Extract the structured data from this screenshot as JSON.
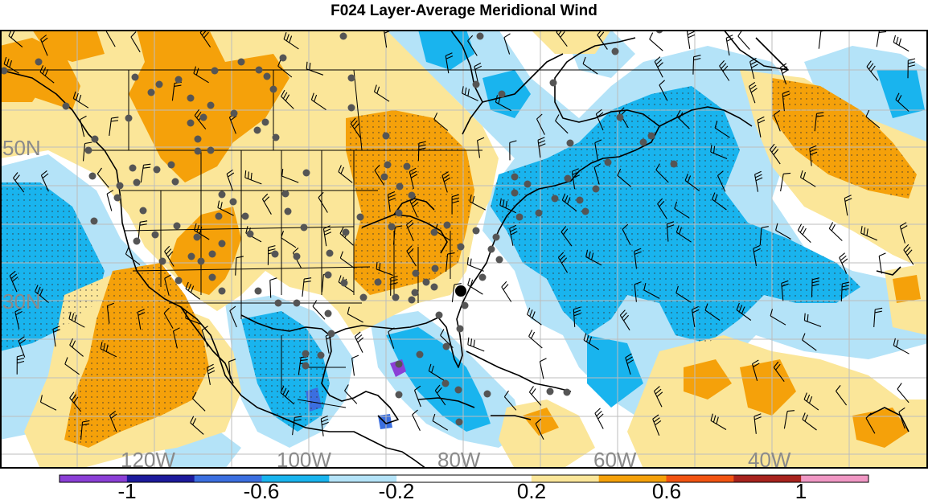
{
  "title": "F024 Layer-Average Meridional Wind",
  "colors": {
    "blue_dark": "#2a1fa0",
    "blue_mid": "#3b6fe0",
    "cyan": "#19b4ee",
    "lightblue": "#b4e3f8",
    "white": "#ffffff",
    "yellow": "#fbe699",
    "orange": "#f5a10a",
    "orange_red": "#f25412",
    "red": "#c8261e",
    "dark_red": "#a8231e",
    "pink": "#f097c4",
    "purple": "#8b3fd6",
    "station_dot": "#555555",
    "grid": "#bdbdbd",
    "border": "#000000"
  },
  "colorbar": {
    "segments": [
      "#8b3fd6",
      "#1c1a9c",
      "#3b6fe0",
      "#19b4ee",
      "#b4e3f8",
      "#ffffff",
      "#ffffff",
      "#fbe699",
      "#f5a10a",
      "#f25412",
      "#a8231e",
      "#f097c4"
    ],
    "labels": [
      "-1",
      "-0.6",
      "-0.2",
      "0.2",
      "0.6",
      "1"
    ]
  },
  "axes": {
    "lat_labels": [
      "50N",
      "30N"
    ],
    "lon_labels": [
      "120W",
      "100W",
      "80W",
      "60W",
      "40W"
    ]
  },
  "highlight_marker": "black-circle"
}
